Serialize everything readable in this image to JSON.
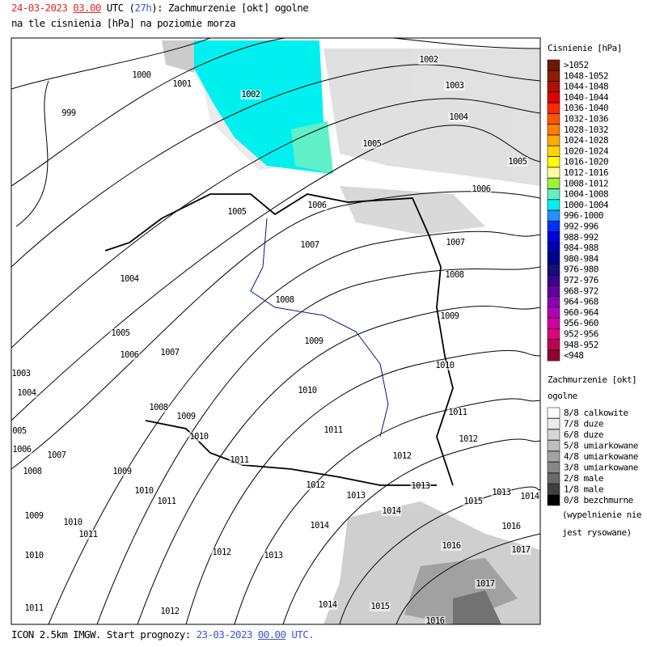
{
  "header": {
    "date": "24-03-2023",
    "hour": "03.00",
    "utc": "UTC",
    "lead": "27h",
    "title": "Zachmurzenie [okt] ogolne",
    "subtitle": "na tle cisnienia [hPa] na poziomie morza"
  },
  "footer": {
    "model": "ICON 2.5km IMGW. Start prognozy:",
    "date": "23-03-2023",
    "hour": "00.00",
    "utc": "UTC."
  },
  "pressure_legend": {
    "title": "Cisnienie [hPa]",
    "entries": [
      {
        "label": ">1052",
        "color": "#6b1a00"
      },
      {
        "label": "1048-1052",
        "color": "#8b1f00"
      },
      {
        "label": "1044-1048",
        "color": "#b01000"
      },
      {
        "label": "1040-1044",
        "color": "#e00000"
      },
      {
        "label": "1036-1040",
        "color": "#ff2a00"
      },
      {
        "label": "1032-1036",
        "color": "#ff5500"
      },
      {
        "label": "1028-1032",
        "color": "#ff7f00"
      },
      {
        "label": "1024-1028",
        "color": "#ffaa00"
      },
      {
        "label": "1020-1024",
        "color": "#ffd400"
      },
      {
        "label": "1016-1020",
        "color": "#ffff00"
      },
      {
        "label": "1012-1016",
        "color": "#ffffa0"
      },
      {
        "label": "1008-1012",
        "color": "#9fef3f"
      },
      {
        "label": "1004-1008",
        "color": "#5ff0c8"
      },
      {
        "label": "1000-1004",
        "color": "#00f0f0"
      },
      {
        "label": "996-1000",
        "color": "#1e90ff"
      },
      {
        "label": "992-996",
        "color": "#0030ff"
      },
      {
        "label": "988-992",
        "color": "#0000e0"
      },
      {
        "label": "984-988",
        "color": "#0000b0"
      },
      {
        "label": "980-984",
        "color": "#000090"
      },
      {
        "label": "976-980",
        "color": "#10107a"
      },
      {
        "label": "972-976",
        "color": "#3a0090"
      },
      {
        "label": "968-972",
        "color": "#6000a0"
      },
      {
        "label": "964-968",
        "color": "#8a00b0"
      },
      {
        "label": "960-964",
        "color": "#b000b8"
      },
      {
        "label": "956-960",
        "color": "#d000a0"
      },
      {
        "label": "952-956",
        "color": "#e00080"
      },
      {
        "label": "948-952",
        "color": "#c00050"
      },
      {
        "label": "<948",
        "color": "#900030"
      }
    ]
  },
  "cloud_legend": {
    "title": "Zachmurzenie [okt]",
    "subtitle": "ogolne",
    "entries": [
      {
        "label": "8/8 calkowite",
        "color": "#ffffff"
      },
      {
        "label": "7/8 duze",
        "color": "#ececec"
      },
      {
        "label": "6/8 duze",
        "color": "#d6d6d6"
      },
      {
        "label": "5/8 umiarkowane",
        "color": "#bdbdbd"
      },
      {
        "label": "4/8 umiarkowane",
        "color": "#a3a3a3"
      },
      {
        "label": "3/8 umiarkowane",
        "color": "#888888"
      },
      {
        "label": "2/8 male",
        "color": "#6a6a6a"
      },
      {
        "label": "1/8 male",
        "color": "#404040"
      },
      {
        "label": "0/8 bezchmurne",
        "color": "#000000"
      }
    ],
    "note": [
      "(wypelnienie nie",
      "jest rysowane)"
    ]
  },
  "map": {
    "isobar_labels": [
      "1000",
      "1001",
      "1002",
      "999",
      "1002",
      "1003",
      "1004",
      "1005",
      "1005",
      "1006",
      "1006",
      "1005",
      "1007",
      "1007",
      "1004",
      "1008",
      "1008",
      "1009",
      "1005",
      "1006",
      "1007",
      "1009",
      "1010",
      "1003",
      "1004",
      "1010",
      "1011",
      "1008",
      "1009",
      "005",
      "1010",
      "1011",
      "1012",
      "1006",
      "1007",
      "1011",
      "1012",
      "1008",
      "1009",
      "1012",
      "1013",
      "1013",
      "1013",
      "1014",
      "1010",
      "1011",
      "1015",
      "1009",
      "1010",
      "1014",
      "1016",
      "1014",
      "1011",
      "1012",
      "1013",
      "1016",
      "1017",
      "1010",
      "1017",
      "1011",
      "1012",
      "1014",
      "1015",
      "1016"
    ]
  }
}
